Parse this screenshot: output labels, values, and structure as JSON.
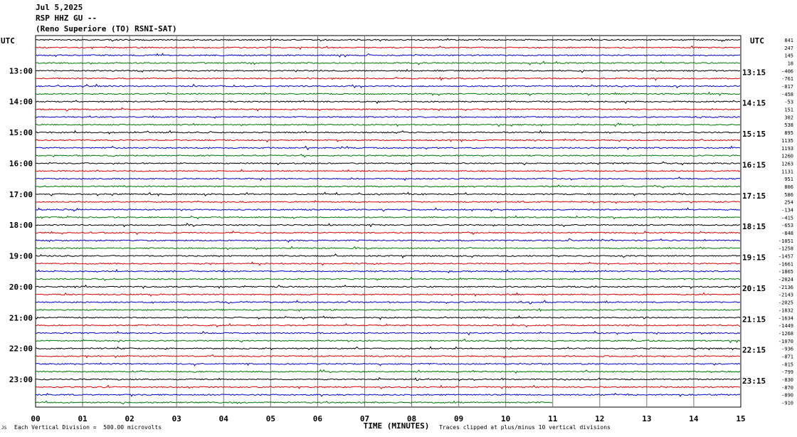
{
  "header": {
    "date": "Jul 5,2025",
    "station": "RSP HHZ GU --",
    "location": "(Reno Superiore (TO) RSNI-SAT)"
  },
  "footer": {
    "corner_mark": "JS",
    "division_note": "Each Vertical Division =  500.00 microvolts",
    "clip_note": "Traces clipped at plus/minus 10 vertical divisions"
  },
  "chart_data": {
    "type": "line",
    "title": "",
    "xlabel": "TIME (MINUTES)",
    "ylabel": "",
    "left_axis_title": "UTC",
    "right_axis_title": "UTC",
    "xlim": [
      0,
      15
    ],
    "x_ticks": [
      "00",
      "01",
      "02",
      "03",
      "04",
      "05",
      "06",
      "07",
      "08",
      "09",
      "10",
      "11",
      "12",
      "13",
      "14",
      "15"
    ],
    "grid": true,
    "trace_colors": [
      "#000000",
      "#dd0000",
      "#0000cc",
      "#007700"
    ],
    "left_hour_labels": [
      "13:00",
      "14:00",
      "15:00",
      "16:00",
      "17:00",
      "18:00",
      "19:00",
      "20:00",
      "21:00",
      "22:00",
      "23:00"
    ],
    "right_hour_labels": [
      "13:15",
      "14:15",
      "15:15",
      "16:15",
      "17:15",
      "18:15",
      "19:15",
      "20:15",
      "21:15",
      "22:15",
      "23:15"
    ],
    "trace_offsets": [
      841,
      247,
      145,
      18,
      -406,
      -761,
      -817,
      -458,
      -53,
      151,
      302,
      538,
      895,
      1135,
      1193,
      1260,
      1263,
      1131,
      951,
      806,
      586,
      254,
      -134,
      -415,
      -653,
      -848,
      -1051,
      -1258,
      -1457,
      -1661,
      -1865,
      -2024,
      -2136,
      -2143,
      -2025,
      -1832,
      -1634,
      -1449,
      -1268,
      -1070,
      -936,
      -871,
      -815,
      -799,
      -830,
      -870,
      -890,
      -910
    ],
    "last_trace_end_minute": 11.0
  }
}
